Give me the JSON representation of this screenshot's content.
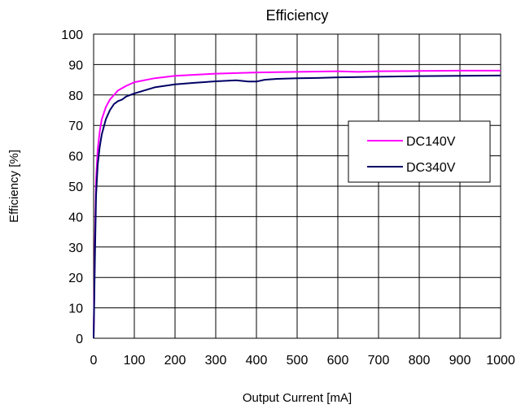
{
  "chart_data": {
    "type": "line",
    "title": "Efficiency",
    "xlabel": "Output Current [mA]",
    "ylabel": "Efficiency [%]",
    "xlim": [
      0,
      1000
    ],
    "ylim": [
      0,
      100
    ],
    "xticks": [
      0,
      100,
      200,
      300,
      400,
      500,
      600,
      700,
      800,
      900,
      1000
    ],
    "yticks": [
      0,
      10,
      20,
      30,
      40,
      50,
      60,
      70,
      80,
      90,
      100
    ],
    "grid": true,
    "legend_position": "right",
    "series": [
      {
        "name": "DC140V",
        "color": "#ff00ff",
        "x": [
          0,
          3,
          6,
          10,
          15,
          20,
          30,
          40,
          50,
          60,
          80,
          100,
          150,
          200,
          300,
          400,
          500,
          600,
          650,
          700,
          800,
          900,
          1000
        ],
        "y": [
          0,
          30,
          52,
          62,
          68,
          72,
          76,
          78.5,
          80,
          81.5,
          83,
          84.2,
          85.5,
          86.3,
          87,
          87.4,
          87.6,
          87.8,
          87.6,
          87.8,
          87.9,
          88,
          88
        ]
      },
      {
        "name": "DC340V",
        "color": "#000066",
        "x": [
          0,
          3,
          6,
          10,
          15,
          20,
          30,
          40,
          50,
          60,
          70,
          80,
          100,
          150,
          200,
          250,
          300,
          350,
          380,
          400,
          420,
          450,
          500,
          550,
          600,
          650,
          700,
          800,
          900,
          1000
        ],
        "y": [
          0,
          25,
          47,
          57,
          63,
          67,
          72,
          75,
          77,
          78,
          78.5,
          79.5,
          80.5,
          82.5,
          83.5,
          84,
          84.5,
          84.8,
          84.4,
          84.4,
          85,
          85.3,
          85.5,
          85.6,
          85.8,
          85.9,
          86,
          86.2,
          86.3,
          86.4
        ]
      }
    ]
  }
}
